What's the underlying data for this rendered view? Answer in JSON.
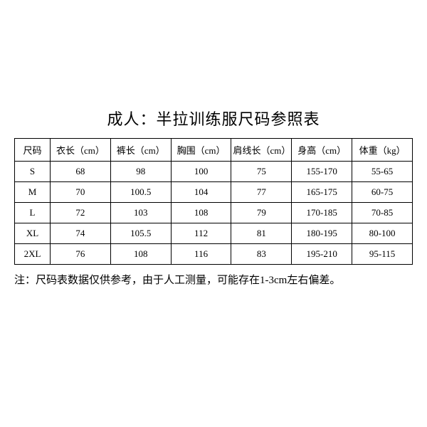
{
  "title": "成人：半拉训练服尺码参照表",
  "table": {
    "type": "table",
    "background_color": "#ffffff",
    "border_color": "#000000",
    "text_color": "#000000",
    "title_fontsize": 22,
    "cell_fontsize": 13,
    "columns": [
      "尺码",
      "衣长（cm）",
      "裤长（cm）",
      "胸围（cm）",
      "肩线长（cm）",
      "身高（cm）",
      "体重（kg）"
    ],
    "rows": [
      [
        "S",
        "68",
        "98",
        "100",
        "75",
        "155-170",
        "55-65"
      ],
      [
        "M",
        "70",
        "100.5",
        "104",
        "77",
        "165-175",
        "60-75"
      ],
      [
        "L",
        "72",
        "103",
        "108",
        "79",
        "170-185",
        "70-85"
      ],
      [
        "XL",
        "74",
        "105.5",
        "112",
        "81",
        "180-195",
        "80-100"
      ],
      [
        "2XL",
        "76",
        "108",
        "116",
        "83",
        "195-210",
        "95-115"
      ]
    ]
  },
  "note": "注：尺码表数据仅供参考，由于人工测量，可能存在1-3cm左右偏差。"
}
